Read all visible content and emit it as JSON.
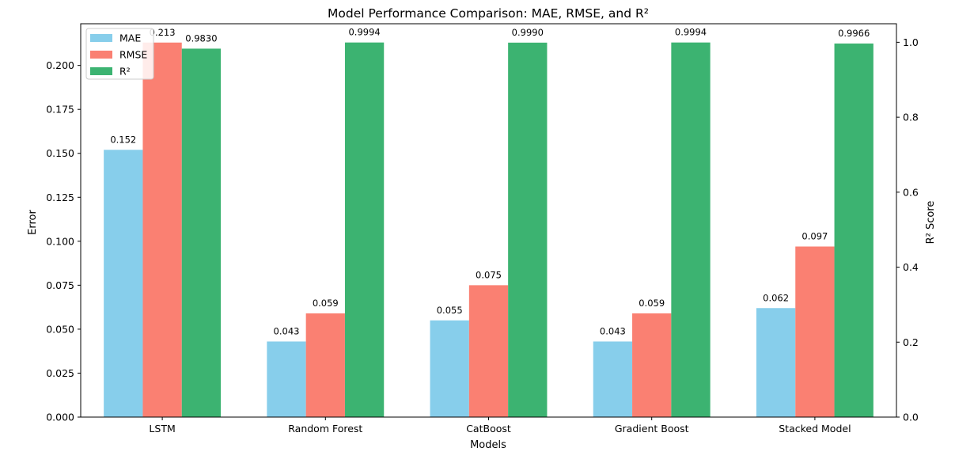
{
  "chart_data": {
    "type": "bar",
    "title": "Model Performance Comparison: MAE, RMSE, and R²",
    "xlabel": "Models",
    "ylabel": "Error",
    "ylabel_right": "R² Score",
    "categories": [
      "LSTM",
      "Random Forest",
      "CatBoost",
      "Gradient Boost",
      "Stacked Model"
    ],
    "series": [
      {
        "name": "MAE",
        "axis": "left",
        "color": "#87ceeb",
        "values": [
          0.152,
          0.043,
          0.055,
          0.043,
          0.062
        ],
        "labels": [
          "0.152",
          "0.043",
          "0.055",
          "0.043",
          "0.062"
        ]
      },
      {
        "name": "RMSE",
        "axis": "left",
        "color": "#fa8072",
        "values": [
          0.213,
          0.059,
          0.075,
          0.059,
          0.097
        ],
        "labels": [
          "0.213",
          "0.059",
          "0.075",
          "0.059",
          "0.097"
        ]
      },
      {
        "name": "R²",
        "axis": "right",
        "color": "#3cb371",
        "values": [
          0.983,
          0.9994,
          0.999,
          0.9994,
          0.9966
        ],
        "labels": [
          "0.9830",
          "0.9994",
          "0.9990",
          "0.9994",
          "0.9966"
        ]
      }
    ],
    "ylim": [
      0,
      0.2237
    ],
    "ylim_right": [
      0,
      1.0494
    ],
    "yticks": [
      "0.000",
      "0.025",
      "0.050",
      "0.075",
      "0.100",
      "0.125",
      "0.150",
      "0.175",
      "0.200"
    ],
    "yticks_right": [
      "0.0",
      "0.2",
      "0.4",
      "0.6",
      "0.8",
      "1.0"
    ],
    "grid": false,
    "legend_position": "top-left"
  }
}
